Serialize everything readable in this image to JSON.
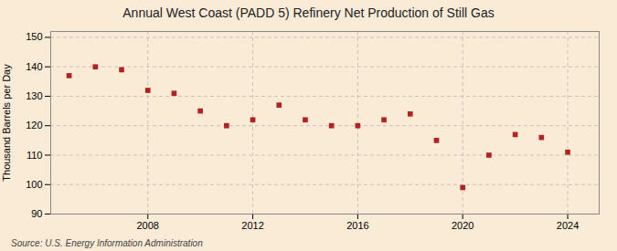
{
  "chart_data": {
    "type": "scatter",
    "title": "Annual West Coast (PADD 5) Refinery Net Production of Still Gas",
    "ylabel": "Thousand Barrels per Day",
    "source": "Source: U.S. Energy Information Administration",
    "x": [
      2005,
      2006,
      2007,
      2008,
      2009,
      2010,
      2011,
      2012,
      2013,
      2014,
      2015,
      2016,
      2017,
      2018,
      2019,
      2020,
      2021,
      2022,
      2023,
      2024
    ],
    "values": [
      137,
      140,
      139,
      132,
      131,
      125,
      120,
      122,
      127,
      122,
      120,
      120,
      122,
      124,
      115,
      99,
      110,
      117,
      116,
      111
    ],
    "xlim": [
      2004.3,
      2025.2
    ],
    "xticks": [
      2008,
      2012,
      2016,
      2020,
      2024
    ],
    "ylim": [
      90,
      152
    ],
    "yticks": [
      90,
      100,
      110,
      120,
      130,
      140,
      150
    ],
    "color": "#b22222",
    "marker": "square",
    "grid": true
  }
}
